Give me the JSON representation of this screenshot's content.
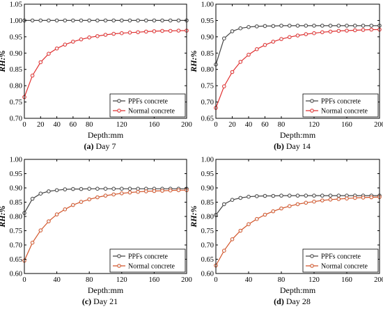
{
  "figure": {
    "panels": [
      {
        "letter": "(a)",
        "caption": "Day 7"
      },
      {
        "letter": "(b)",
        "caption": "Day 14"
      },
      {
        "letter": "(c)",
        "caption": "Day 21"
      },
      {
        "letter": "(d)",
        "caption": "Day 28"
      }
    ]
  },
  "chart_data": [
    {
      "type": "line",
      "xlabel": "Depth:mm",
      "ylabel": "RH:%",
      "xlim": [
        0,
        200
      ],
      "ylim": [
        0.7,
        1.05
      ],
      "xticks": [
        "0",
        "20",
        "40",
        "60",
        "80",
        "120",
        "160",
        "200"
      ],
      "yticks": [
        "0.70",
        "0.75",
        "0.80",
        "0.85",
        "0.90",
        "0.95",
        "1.00",
        "1.05"
      ],
      "grid": false,
      "legend_position": "bottom-right",
      "x": [
        0,
        10,
        20,
        30,
        40,
        50,
        60,
        70,
        80,
        90,
        100,
        110,
        120,
        130,
        140,
        150,
        160,
        170,
        180,
        190,
        200
      ],
      "series": [
        {
          "name": "PPFs concrete",
          "color": "#444444",
          "values": [
            1.0,
            1.0,
            1.0,
            1.0,
            1.0,
            1.0,
            1.0,
            1.0,
            1.0,
            1.0,
            1.0,
            1.0,
            1.0,
            1.0,
            1.0,
            1.0,
            1.0,
            1.0,
            1.0,
            1.0,
            1.0
          ]
        },
        {
          "name": "Normal concrete",
          "color": "#e03030",
          "values": [
            0.765,
            0.831,
            0.872,
            0.898,
            0.914,
            0.926,
            0.935,
            0.942,
            0.948,
            0.952,
            0.956,
            0.959,
            0.961,
            0.963,
            0.964,
            0.966,
            0.967,
            0.968,
            0.968,
            0.969,
            0.969
          ]
        }
      ]
    },
    {
      "type": "line",
      "xlabel": "Depth:mm",
      "ylabel": "RH:%",
      "xlim": [
        0,
        200
      ],
      "ylim": [
        0.65,
        1.0
      ],
      "xticks": [
        "0",
        "20",
        "40",
        "60",
        "80",
        "120",
        "160",
        "200"
      ],
      "yticks": [
        "0.65",
        "0.70",
        "0.75",
        "0.80",
        "0.85",
        "0.90",
        "0.95",
        "1.00"
      ],
      "grid": false,
      "legend_position": "bottom-right",
      "x": [
        0,
        10,
        20,
        30,
        40,
        50,
        60,
        70,
        80,
        90,
        100,
        110,
        120,
        130,
        140,
        150,
        160,
        170,
        180,
        190,
        200
      ],
      "series": [
        {
          "name": "PPFs concrete",
          "color": "#444444",
          "values": [
            0.815,
            0.895,
            0.917,
            0.926,
            0.93,
            0.932,
            0.933,
            0.933,
            0.934,
            0.934,
            0.934,
            0.934,
            0.934,
            0.934,
            0.934,
            0.934,
            0.934,
            0.934,
            0.934,
            0.934,
            0.934
          ]
        },
        {
          "name": "Normal concrete",
          "color": "#e03030",
          "values": [
            0.682,
            0.748,
            0.792,
            0.823,
            0.845,
            0.862,
            0.875,
            0.885,
            0.893,
            0.899,
            0.904,
            0.908,
            0.911,
            0.914,
            0.916,
            0.918,
            0.919,
            0.92,
            0.921,
            0.922,
            0.922
          ]
        }
      ]
    },
    {
      "type": "line",
      "xlabel": "Depth:mm",
      "ylabel": "RH:%",
      "xlim": [
        0,
        200
      ],
      "ylim": [
        0.6,
        1.0
      ],
      "xticks": [
        "0",
        "40",
        "80",
        "120",
        "160",
        "200"
      ],
      "yticks": [
        "0.60",
        "0.65",
        "0.70",
        "0.75",
        "0.80",
        "0.85",
        "0.90",
        "0.95",
        "1.00"
      ],
      "grid": false,
      "legend_position": "bottom-right",
      "x": [
        0,
        10,
        20,
        30,
        40,
        50,
        60,
        70,
        80,
        90,
        100,
        110,
        120,
        130,
        140,
        150,
        160,
        170,
        180,
        190,
        200
      ],
      "series": [
        {
          "name": "PPFs concrete",
          "color": "#444444",
          "values": [
            0.812,
            0.862,
            0.88,
            0.888,
            0.892,
            0.895,
            0.896,
            0.896,
            0.897,
            0.897,
            0.897,
            0.897,
            0.897,
            0.897,
            0.897,
            0.897,
            0.897,
            0.897,
            0.897,
            0.897,
            0.897
          ]
        },
        {
          "name": "Normal concrete",
          "color": "#d2552a",
          "values": [
            0.645,
            0.708,
            0.751,
            0.783,
            0.807,
            0.825,
            0.84,
            0.851,
            0.86,
            0.867,
            0.873,
            0.877,
            0.881,
            0.884,
            0.886,
            0.888,
            0.889,
            0.89,
            0.891,
            0.892,
            0.892
          ]
        }
      ]
    },
    {
      "type": "line",
      "xlabel": "Depth:mm",
      "ylabel": "RH:%",
      "xlim": [
        0,
        200
      ],
      "ylim": [
        0.6,
        1.0
      ],
      "xticks": [
        "0",
        "40",
        "80",
        "120",
        "160",
        "200"
      ],
      "yticks": [
        "0.60",
        "0.65",
        "0.70",
        "0.75",
        "0.80",
        "0.85",
        "0.90",
        "0.95",
        "1.00"
      ],
      "grid": false,
      "legend_position": "bottom-right",
      "x": [
        0,
        10,
        20,
        30,
        40,
        50,
        60,
        70,
        80,
        90,
        100,
        110,
        120,
        130,
        140,
        150,
        160,
        170,
        180,
        190,
        200
      ],
      "series": [
        {
          "name": "PPFs concrete",
          "color": "#444444",
          "values": [
            0.805,
            0.843,
            0.858,
            0.865,
            0.869,
            0.871,
            0.872,
            0.872,
            0.873,
            0.873,
            0.873,
            0.873,
            0.873,
            0.873,
            0.873,
            0.873,
            0.873,
            0.873,
            0.873,
            0.873,
            0.873
          ]
        },
        {
          "name": "Normal concrete",
          "color": "#d2552a",
          "values": [
            0.628,
            0.68,
            0.72,
            0.75,
            0.773,
            0.791,
            0.806,
            0.818,
            0.828,
            0.836,
            0.843,
            0.848,
            0.852,
            0.856,
            0.859,
            0.861,
            0.863,
            0.865,
            0.866,
            0.867,
            0.868
          ]
        }
      ]
    }
  ]
}
